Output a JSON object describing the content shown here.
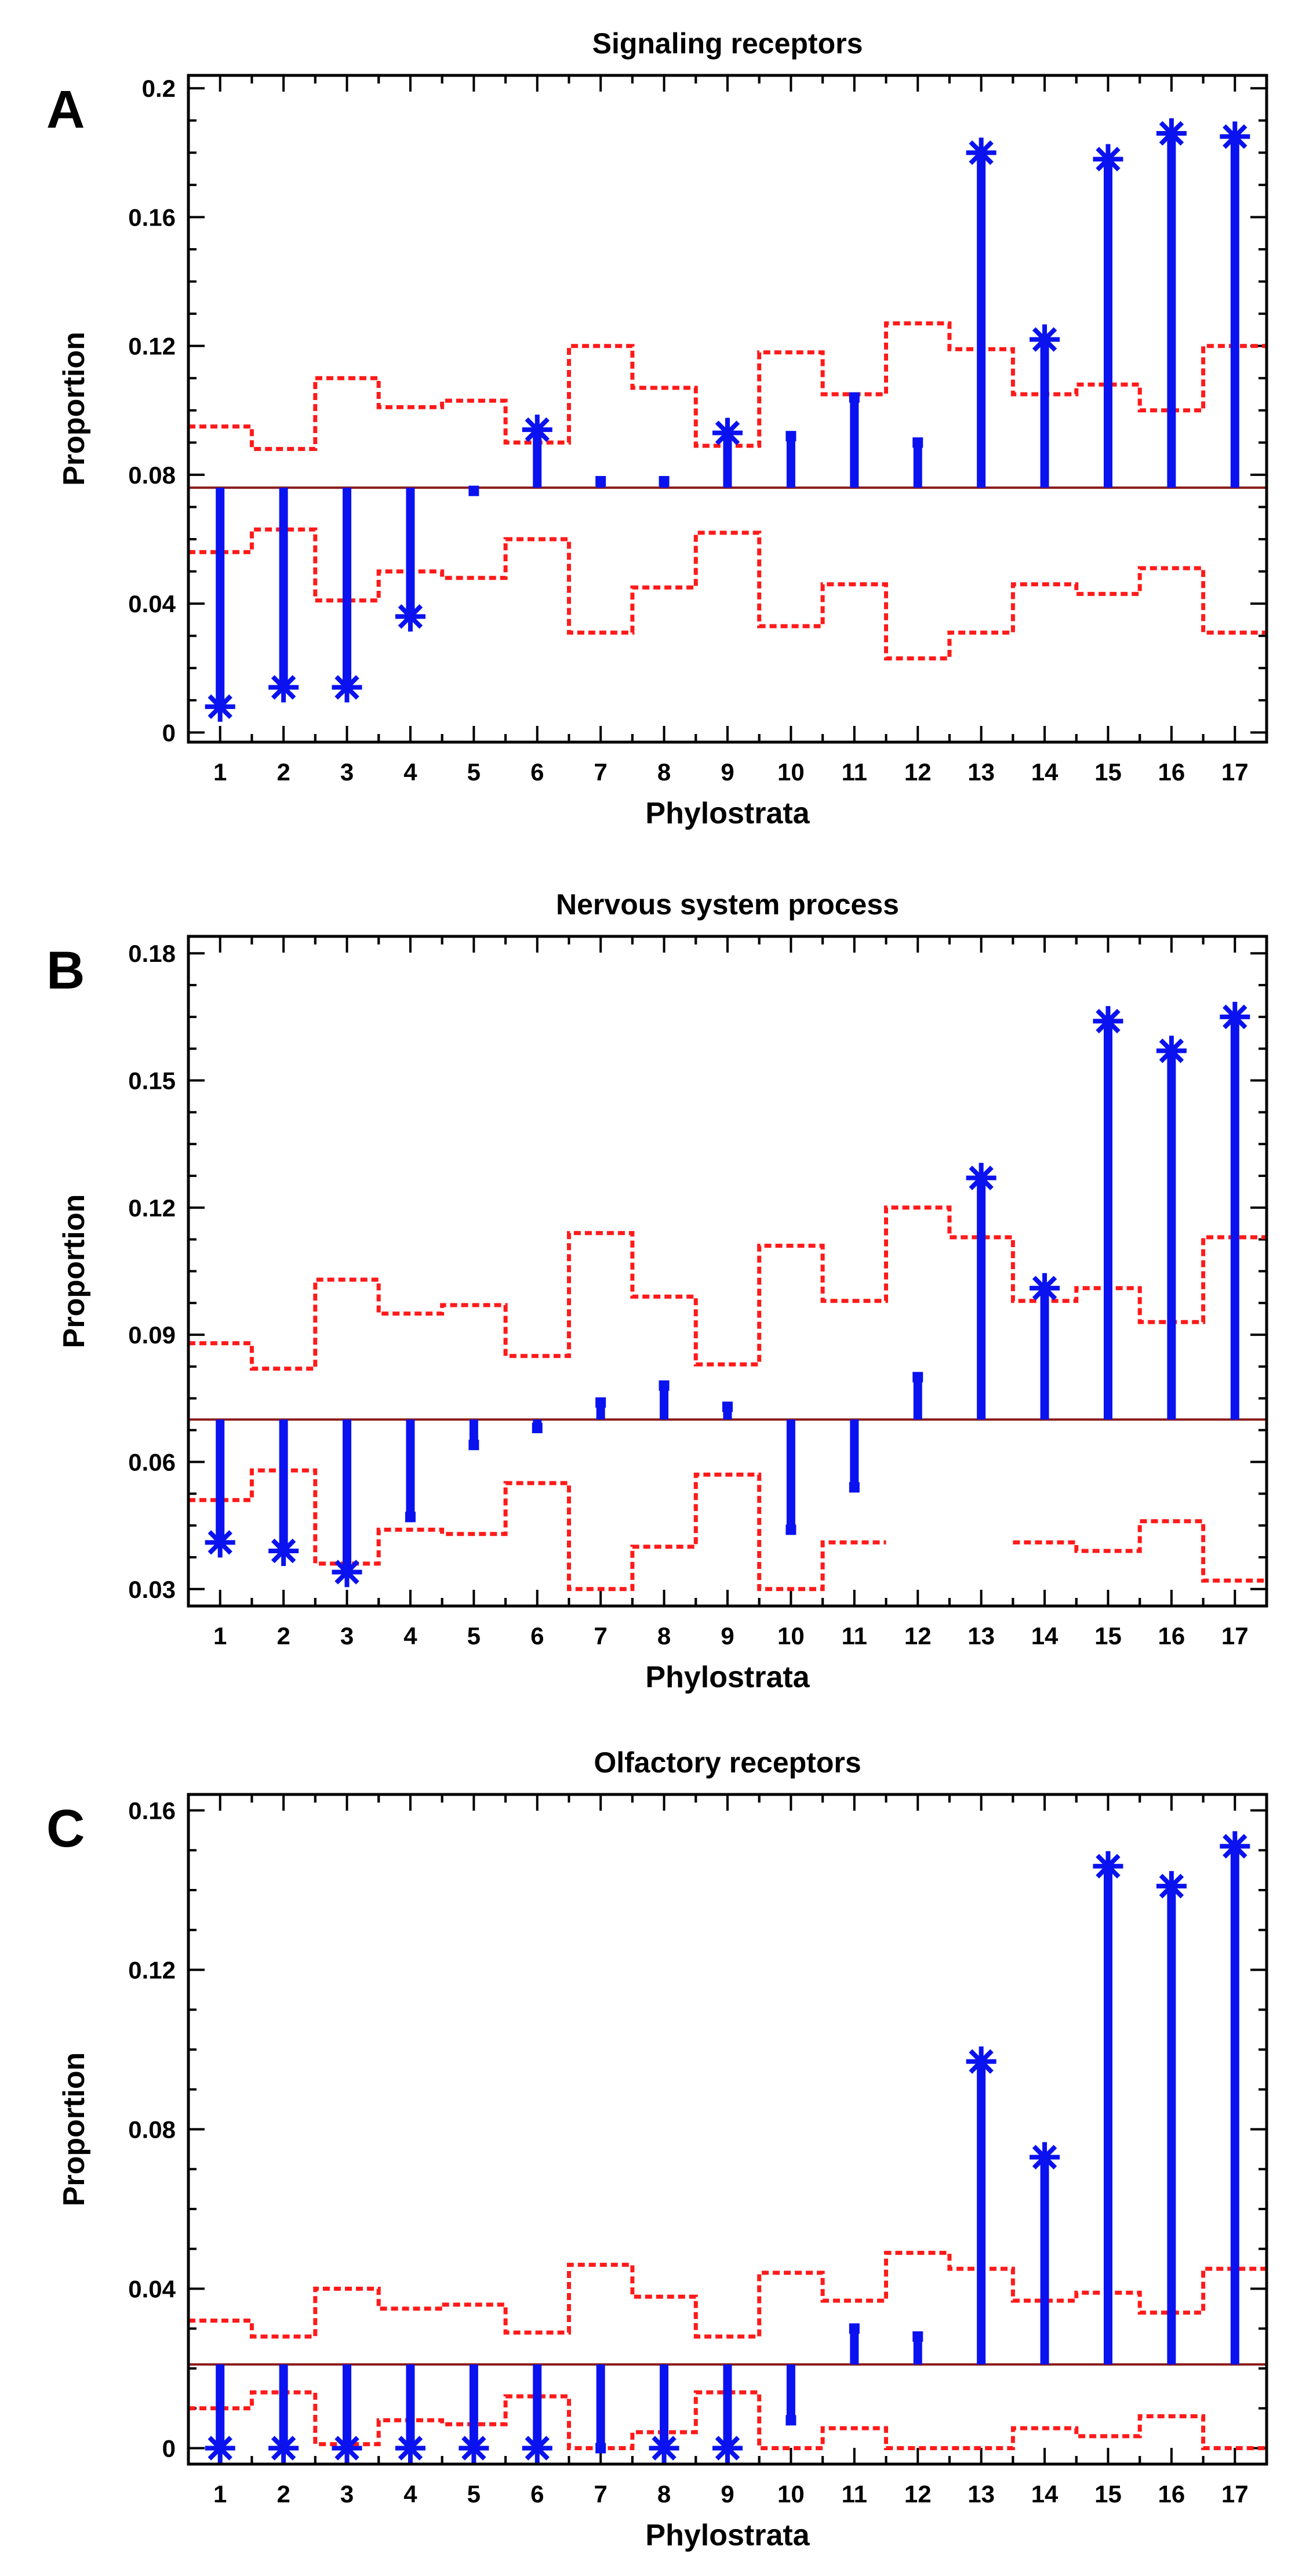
{
  "colors": {
    "stem": "#0a12f0",
    "band": "#ff1a1a",
    "baseline": "#8b1a1a",
    "axis": "#000000"
  },
  "chart_data": [
    {
      "panel": "A",
      "type": "scatter",
      "title": "Signaling receptors",
      "xlabel": "Phylostrata",
      "ylabel": "Proportion",
      "x": [
        1,
        2,
        3,
        4,
        5,
        6,
        7,
        8,
        9,
        10,
        11,
        12,
        13,
        14,
        15,
        16,
        17
      ],
      "xlim": [
        0.5,
        17.5
      ],
      "ylim": [
        -0.003,
        0.204
      ],
      "yticks": [
        0,
        0.04,
        0.08,
        0.12,
        0.16,
        0.2
      ],
      "ytick_labels": [
        "0",
        "0.04",
        "0.08",
        "0.12",
        "0.16",
        "0.2"
      ],
      "baseline": 0.076,
      "series": [
        {
          "name": "observed proportion",
          "values": [
            0.008,
            0.014,
            0.014,
            0.036,
            0.075,
            0.094,
            0.078,
            0.078,
            0.093,
            0.092,
            0.104,
            0.09,
            0.18,
            0.122,
            0.178,
            0.186,
            0.185
          ]
        },
        {
          "name": "upper bound",
          "values": [
            0.095,
            0.088,
            0.11,
            0.101,
            0.103,
            0.09,
            0.12,
            0.107,
            0.089,
            0.118,
            0.105,
            0.127,
            0.119,
            0.105,
            0.108,
            0.1,
            0.12
          ]
        },
        {
          "name": "lower bound",
          "values": [
            0.056,
            0.063,
            0.041,
            0.05,
            0.048,
            0.06,
            0.031,
            0.045,
            0.062,
            0.033,
            0.046,
            0.023,
            0.031,
            0.046,
            0.043,
            0.051,
            0.031
          ]
        }
      ],
      "significant": [
        1,
        2,
        3,
        4,
        6,
        9,
        13,
        14,
        15,
        16,
        17
      ]
    },
    {
      "panel": "B",
      "type": "scatter",
      "title": "Nervous system process",
      "xlabel": "Phylostrata",
      "ylabel": "Proportion",
      "x": [
        1,
        2,
        3,
        4,
        5,
        6,
        7,
        8,
        9,
        10,
        11,
        12,
        13,
        14,
        15,
        16,
        17
      ],
      "xlim": [
        0.5,
        17.5
      ],
      "ylim": [
        0.026,
        0.184
      ],
      "yticks": [
        0.03,
        0.06,
        0.09,
        0.12,
        0.15,
        0.18
      ],
      "ytick_labels": [
        "0.03",
        "0.06",
        "0.09",
        "0.12",
        "0.15",
        "0.18"
      ],
      "baseline": 0.07,
      "series": [
        {
          "name": "observed proportion",
          "values": [
            0.041,
            0.039,
            0.034,
            0.047,
            0.064,
            0.068,
            0.074,
            0.078,
            0.073,
            0.044,
            0.054,
            0.08,
            0.127,
            0.101,
            0.164,
            0.157,
            0.165
          ]
        },
        {
          "name": "upper bound",
          "values": [
            0.088,
            0.082,
            0.103,
            0.095,
            0.097,
            0.085,
            0.114,
            0.099,
            0.083,
            0.111,
            0.098,
            0.12,
            0.113,
            0.098,
            0.101,
            0.093,
            0.113
          ]
        },
        {
          "name": "lower bound",
          "values": [
            0.051,
            0.058,
            0.036,
            0.044,
            0.043,
            0.055,
            0.03,
            0.04,
            0.057,
            0.03,
            0.041,
            null,
            null,
            0.041,
            0.039,
            0.046,
            0.032
          ]
        }
      ],
      "significant": [
        1,
        2,
        3,
        13,
        14,
        15,
        16,
        17
      ]
    },
    {
      "panel": "C",
      "type": "scatter",
      "title": "Olfactory receptors",
      "xlabel": "Phylostrata",
      "ylabel": "Proportion",
      "x": [
        1,
        2,
        3,
        4,
        5,
        6,
        7,
        8,
        9,
        10,
        11,
        12,
        13,
        14,
        15,
        16,
        17
      ],
      "xlim": [
        0.5,
        17.5
      ],
      "ylim": [
        -0.004,
        0.164
      ],
      "yticks": [
        0,
        0.04,
        0.08,
        0.12,
        0.16
      ],
      "ytick_labels": [
        "0",
        "0.04",
        "0.08",
        "0.12",
        "0.16"
      ],
      "baseline": 0.021,
      "series": [
        {
          "name": "observed proportion",
          "values": [
            0,
            0,
            0,
            0,
            0,
            0,
            0,
            0,
            0,
            0.007,
            0.03,
            0.028,
            0.097,
            0.073,
            0.146,
            0.141,
            0.151
          ]
        },
        {
          "name": "upper bound",
          "values": [
            0.032,
            0.028,
            0.04,
            0.035,
            0.036,
            0.029,
            0.046,
            0.038,
            0.028,
            0.044,
            0.037,
            0.049,
            0.045,
            0.037,
            0.039,
            0.034,
            0.045
          ]
        },
        {
          "name": "lower bound",
          "values": [
            0.01,
            0.014,
            0.001,
            0.007,
            0.006,
            0.013,
            0,
            0.004,
            0.014,
            0,
            0.005,
            0,
            0,
            0.005,
            0.003,
            0.008,
            0
          ]
        }
      ],
      "significant": [
        1,
        2,
        3,
        4,
        5,
        6,
        8,
        9,
        13,
        14,
        15,
        16,
        17
      ]
    }
  ]
}
